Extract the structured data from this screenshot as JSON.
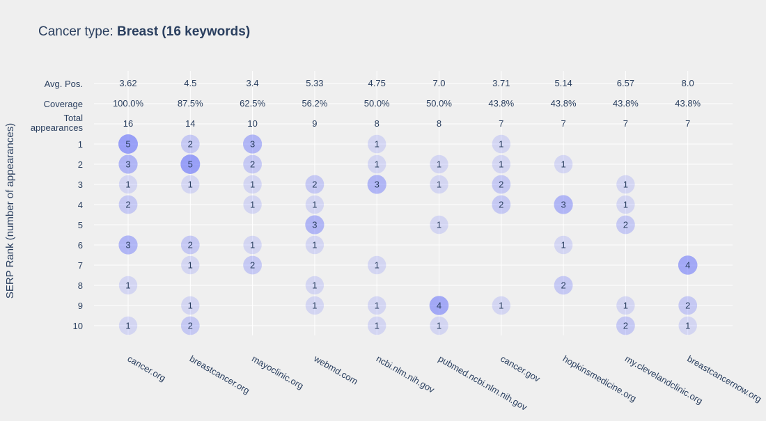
{
  "chart_data": {
    "type": "scatter",
    "title_prefix": "Cancer type: ",
    "title_bold": "Breast (16 keywords)",
    "ylabel": "SERP Rank (number of appearances)",
    "xlabel": "",
    "domains": [
      "cancer.org",
      "breastcancer.org",
      "mayoclinic.org",
      "webmd.com",
      "ncbi.nlm.nih.gov",
      "pubmed.ncbi.nlm.nih.gov",
      "cancer.gov",
      "hopkinsmedicine.org",
      "my.clevelandclinic.org",
      "breastcancernow.org"
    ],
    "summary_rows": [
      {
        "label": "Avg. Pos.",
        "values": [
          "3.62",
          "4.5",
          "3.4",
          "5.33",
          "4.75",
          "7.0",
          "3.71",
          "5.14",
          "6.57",
          "8.0"
        ]
      },
      {
        "label": "Coverage",
        "values": [
          "100.0%",
          "87.5%",
          "62.5%",
          "56.2%",
          "50.0%",
          "50.0%",
          "43.8%",
          "43.8%",
          "43.8%",
          "43.8%"
        ]
      },
      {
        "label_lines": [
          "Total",
          "appearances"
        ],
        "values": [
          "16",
          "14",
          "10",
          "9",
          "8",
          "8",
          "7",
          "7",
          "7",
          "7"
        ]
      }
    ],
    "ranks": [
      "1",
      "2",
      "3",
      "4",
      "5",
      "6",
      "7",
      "8",
      "9",
      "10"
    ],
    "points": [
      {
        "domain": "cancer.org",
        "rank": 1,
        "count": 5
      },
      {
        "domain": "cancer.org",
        "rank": 2,
        "count": 3
      },
      {
        "domain": "cancer.org",
        "rank": 3,
        "count": 1
      },
      {
        "domain": "cancer.org",
        "rank": 4,
        "count": 2
      },
      {
        "domain": "cancer.org",
        "rank": 6,
        "count": 3
      },
      {
        "domain": "cancer.org",
        "rank": 8,
        "count": 1
      },
      {
        "domain": "cancer.org",
        "rank": 10,
        "count": 1
      },
      {
        "domain": "breastcancer.org",
        "rank": 1,
        "count": 2
      },
      {
        "domain": "breastcancer.org",
        "rank": 2,
        "count": 5
      },
      {
        "domain": "breastcancer.org",
        "rank": 3,
        "count": 1
      },
      {
        "domain": "breastcancer.org",
        "rank": 6,
        "count": 2
      },
      {
        "domain": "breastcancer.org",
        "rank": 7,
        "count": 1
      },
      {
        "domain": "breastcancer.org",
        "rank": 9,
        "count": 1
      },
      {
        "domain": "breastcancer.org",
        "rank": 10,
        "count": 2
      },
      {
        "domain": "mayoclinic.org",
        "rank": 1,
        "count": 3
      },
      {
        "domain": "mayoclinic.org",
        "rank": 2,
        "count": 2
      },
      {
        "domain": "mayoclinic.org",
        "rank": 3,
        "count": 1
      },
      {
        "domain": "mayoclinic.org",
        "rank": 4,
        "count": 1
      },
      {
        "domain": "mayoclinic.org",
        "rank": 6,
        "count": 1
      },
      {
        "domain": "mayoclinic.org",
        "rank": 7,
        "count": 2
      },
      {
        "domain": "webmd.com",
        "rank": 3,
        "count": 2
      },
      {
        "domain": "webmd.com",
        "rank": 4,
        "count": 1
      },
      {
        "domain": "webmd.com",
        "rank": 5,
        "count": 3
      },
      {
        "domain": "webmd.com",
        "rank": 6,
        "count": 1
      },
      {
        "domain": "webmd.com",
        "rank": 8,
        "count": 1
      },
      {
        "domain": "webmd.com",
        "rank": 9,
        "count": 1
      },
      {
        "domain": "ncbi.nlm.nih.gov",
        "rank": 1,
        "count": 1
      },
      {
        "domain": "ncbi.nlm.nih.gov",
        "rank": 2,
        "count": 1
      },
      {
        "domain": "ncbi.nlm.nih.gov",
        "rank": 3,
        "count": 3
      },
      {
        "domain": "ncbi.nlm.nih.gov",
        "rank": 7,
        "count": 1
      },
      {
        "domain": "ncbi.nlm.nih.gov",
        "rank": 9,
        "count": 1
      },
      {
        "domain": "ncbi.nlm.nih.gov",
        "rank": 10,
        "count": 1
      },
      {
        "domain": "pubmed.ncbi.nlm.nih.gov",
        "rank": 2,
        "count": 1
      },
      {
        "domain": "pubmed.ncbi.nlm.nih.gov",
        "rank": 3,
        "count": 1
      },
      {
        "domain": "pubmed.ncbi.nlm.nih.gov",
        "rank": 5,
        "count": 1
      },
      {
        "domain": "pubmed.ncbi.nlm.nih.gov",
        "rank": 9,
        "count": 4
      },
      {
        "domain": "pubmed.ncbi.nlm.nih.gov",
        "rank": 10,
        "count": 1
      },
      {
        "domain": "cancer.gov",
        "rank": 1,
        "count": 1
      },
      {
        "domain": "cancer.gov",
        "rank": 2,
        "count": 1
      },
      {
        "domain": "cancer.gov",
        "rank": 3,
        "count": 2
      },
      {
        "domain": "cancer.gov",
        "rank": 4,
        "count": 2
      },
      {
        "domain": "cancer.gov",
        "rank": 9,
        "count": 1
      },
      {
        "domain": "hopkinsmedicine.org",
        "rank": 2,
        "count": 1
      },
      {
        "domain": "hopkinsmedicine.org",
        "rank": 4,
        "count": 3
      },
      {
        "domain": "hopkinsmedicine.org",
        "rank": 6,
        "count": 1
      },
      {
        "domain": "hopkinsmedicine.org",
        "rank": 8,
        "count": 2
      },
      {
        "domain": "my.clevelandclinic.org",
        "rank": 3,
        "count": 1
      },
      {
        "domain": "my.clevelandclinic.org",
        "rank": 4,
        "count": 1
      },
      {
        "domain": "my.clevelandclinic.org",
        "rank": 5,
        "count": 2
      },
      {
        "domain": "my.clevelandclinic.org",
        "rank": 9,
        "count": 1
      },
      {
        "domain": "my.clevelandclinic.org",
        "rank": 10,
        "count": 2
      },
      {
        "domain": "breastcancernow.org",
        "rank": 7,
        "count": 4
      },
      {
        "domain": "breastcancernow.org",
        "rank": 9,
        "count": 2
      },
      {
        "domain": "breastcancernow.org",
        "rank": 10,
        "count": 1
      }
    ],
    "bubble_color": "#636efa",
    "grid": true,
    "legend": "none"
  }
}
